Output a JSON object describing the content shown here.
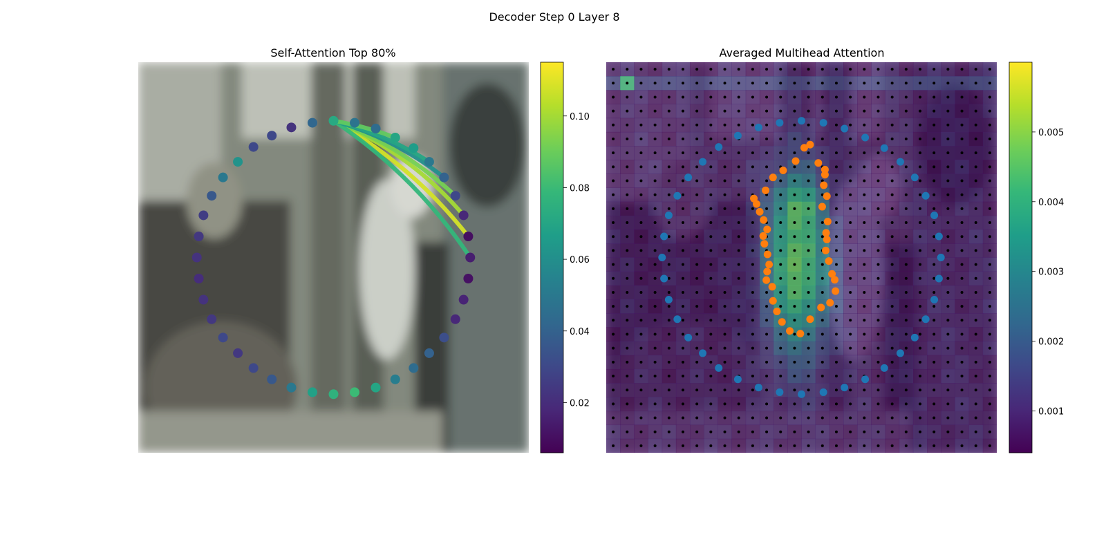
{
  "figure": {
    "title": "Decoder Step 0 Layer 8"
  },
  "colormap": [
    "#440154",
    "#482878",
    "#3e4989",
    "#31688e",
    "#26828e",
    "#1f9e89",
    "#35b779",
    "#6ece58",
    "#b5de2b",
    "#fde725"
  ],
  "chart_data": [
    {
      "type": "scatter",
      "title": "Self-Attention Top 80%",
      "background": "blurred street photo (bicycles, pole, pedestrian)",
      "xlim": [
        0,
        1
      ],
      "ylim": [
        0,
        1
      ],
      "points_note": "40 contour points on a ring; color = self-attention weight",
      "points": [
        {
          "x": 0.5,
          "y": 0.85,
          "v": 0.072
        },
        {
          "x": 0.554,
          "y": 0.845,
          "v": 0.048
        },
        {
          "x": 0.608,
          "y": 0.83,
          "v": 0.044
        },
        {
          "x": 0.658,
          "y": 0.807,
          "v": 0.07
        },
        {
          "x": 0.705,
          "y": 0.78,
          "v": 0.066
        },
        {
          "x": 0.745,
          "y": 0.745,
          "v": 0.05
        },
        {
          "x": 0.783,
          "y": 0.705,
          "v": 0.04
        },
        {
          "x": 0.812,
          "y": 0.658,
          "v": 0.03
        },
        {
          "x": 0.833,
          "y": 0.608,
          "v": 0.018
        },
        {
          "x": 0.845,
          "y": 0.554,
          "v": 0.01
        },
        {
          "x": 0.85,
          "y": 0.5,
          "v": 0.015
        },
        {
          "x": 0.845,
          "y": 0.446,
          "v": 0.011
        },
        {
          "x": 0.833,
          "y": 0.392,
          "v": 0.017
        },
        {
          "x": 0.812,
          "y": 0.342,
          "v": 0.018
        },
        {
          "x": 0.783,
          "y": 0.295,
          "v": 0.032
        },
        {
          "x": 0.745,
          "y": 0.255,
          "v": 0.04
        },
        {
          "x": 0.705,
          "y": 0.217,
          "v": 0.044
        },
        {
          "x": 0.658,
          "y": 0.188,
          "v": 0.052
        },
        {
          "x": 0.608,
          "y": 0.167,
          "v": 0.07
        },
        {
          "x": 0.554,
          "y": 0.155,
          "v": 0.08
        },
        {
          "x": 0.5,
          "y": 0.15,
          "v": 0.076
        },
        {
          "x": 0.446,
          "y": 0.155,
          "v": 0.068
        },
        {
          "x": 0.392,
          "y": 0.167,
          "v": 0.05
        },
        {
          "x": 0.342,
          "y": 0.188,
          "v": 0.036
        },
        {
          "x": 0.295,
          "y": 0.217,
          "v": 0.03
        },
        {
          "x": 0.255,
          "y": 0.255,
          "v": 0.024
        },
        {
          "x": 0.217,
          "y": 0.295,
          "v": 0.03
        },
        {
          "x": 0.188,
          "y": 0.342,
          "v": 0.024
        },
        {
          "x": 0.167,
          "y": 0.392,
          "v": 0.022
        },
        {
          "x": 0.155,
          "y": 0.446,
          "v": 0.02
        },
        {
          "x": 0.15,
          "y": 0.5,
          "v": 0.022
        },
        {
          "x": 0.155,
          "y": 0.554,
          "v": 0.024
        },
        {
          "x": 0.167,
          "y": 0.608,
          "v": 0.026
        },
        {
          "x": 0.188,
          "y": 0.658,
          "v": 0.036
        },
        {
          "x": 0.217,
          "y": 0.705,
          "v": 0.05
        },
        {
          "x": 0.255,
          "y": 0.745,
          "v": 0.062
        },
        {
          "x": 0.295,
          "y": 0.783,
          "v": 0.03
        },
        {
          "x": 0.342,
          "y": 0.812,
          "v": 0.03
        },
        {
          "x": 0.392,
          "y": 0.833,
          "v": 0.022
        },
        {
          "x": 0.446,
          "y": 0.845,
          "v": 0.042
        }
      ],
      "edges_note": "attention curves from query point 0 to the top attended points",
      "edges": [
        {
          "from": 0,
          "to": 9,
          "v": 0.108,
          "bend": 0.1
        },
        {
          "from": 0,
          "to": 8,
          "v": 0.1,
          "bend": 0.12
        },
        {
          "from": 0,
          "to": 7,
          "v": 0.092,
          "bend": 0.1
        },
        {
          "from": 0,
          "to": 10,
          "v": 0.078,
          "bend": 0.1
        },
        {
          "from": 0,
          "to": 6,
          "v": 0.06,
          "bend": 0.1
        },
        {
          "from": 0,
          "to": 5,
          "v": 0.07,
          "bend": 0.08
        },
        {
          "from": 0,
          "to": 3,
          "v": 0.088,
          "bend": 0.05
        }
      ],
      "colorbar": {
        "vmin": 0.006,
        "vmax": 0.115,
        "ticks": [
          0.02,
          0.04,
          0.06,
          0.08,
          0.1
        ],
        "tick_labels": [
          "0.02",
          "0.04",
          "0.06",
          "0.08",
          "0.10"
        ]
      }
    },
    {
      "type": "heatmap",
      "title": "Averaged Multihead Attention",
      "background": "blurred street photo under attention heatmap",
      "grid": [
        28,
        28
      ],
      "colorbar": {
        "vmin": 0.0004,
        "vmax": 0.006,
        "ticks": [
          0.001,
          0.002,
          0.003,
          0.004,
          0.005
        ],
        "tick_labels": [
          "0.001",
          "0.002",
          "0.003",
          "0.004",
          "0.005"
        ]
      },
      "series": [
        {
          "name": "",
          "color": "#1f77b4",
          "points_note": "outer ring of sampling points",
          "points": [
            {
              "x": 0.5,
              "y": 0.85
            },
            {
              "x": 0.556,
              "y": 0.845
            },
            {
              "x": 0.61,
              "y": 0.83
            },
            {
              "x": 0.663,
              "y": 0.807
            },
            {
              "x": 0.712,
              "y": 0.78
            },
            {
              "x": 0.753,
              "y": 0.745
            },
            {
              "x": 0.79,
              "y": 0.705
            },
            {
              "x": 0.818,
              "y": 0.658
            },
            {
              "x": 0.84,
              "y": 0.608
            },
            {
              "x": 0.852,
              "y": 0.554
            },
            {
              "x": 0.857,
              "y": 0.5
            },
            {
              "x": 0.852,
              "y": 0.446
            },
            {
              "x": 0.84,
              "y": 0.392
            },
            {
              "x": 0.818,
              "y": 0.342
            },
            {
              "x": 0.79,
              "y": 0.295
            },
            {
              "x": 0.753,
              "y": 0.255
            },
            {
              "x": 0.712,
              "y": 0.217
            },
            {
              "x": 0.663,
              "y": 0.188
            },
            {
              "x": 0.61,
              "y": 0.167
            },
            {
              "x": 0.556,
              "y": 0.155
            },
            {
              "x": 0.5,
              "y": 0.15
            },
            {
              "x": 0.444,
              "y": 0.155
            },
            {
              "x": 0.39,
              "y": 0.167
            },
            {
              "x": 0.337,
              "y": 0.188
            },
            {
              "x": 0.288,
              "y": 0.217
            },
            {
              "x": 0.247,
              "y": 0.255
            },
            {
              "x": 0.21,
              "y": 0.295
            },
            {
              "x": 0.182,
              "y": 0.342
            },
            {
              "x": 0.16,
              "y": 0.392
            },
            {
              "x": 0.148,
              "y": 0.446
            },
            {
              "x": 0.143,
              "y": 0.5
            },
            {
              "x": 0.148,
              "y": 0.554
            },
            {
              "x": 0.16,
              "y": 0.608
            },
            {
              "x": 0.182,
              "y": 0.658
            },
            {
              "x": 0.21,
              "y": 0.705
            },
            {
              "x": 0.247,
              "y": 0.745
            },
            {
              "x": 0.288,
              "y": 0.783
            },
            {
              "x": 0.337,
              "y": 0.812
            },
            {
              "x": 0.39,
              "y": 0.833
            },
            {
              "x": 0.444,
              "y": 0.845
            }
          ]
        },
        {
          "name": "",
          "color": "#ff7f0e",
          "points_note": "inner contour of predicted points",
          "points": [
            {
              "x": 0.507,
              "y": 0.781
            },
            {
              "x": 0.522,
              "y": 0.789
            },
            {
              "x": 0.543,
              "y": 0.742
            },
            {
              "x": 0.56,
              "y": 0.725
            },
            {
              "x": 0.56,
              "y": 0.712
            },
            {
              "x": 0.557,
              "y": 0.685
            },
            {
              "x": 0.565,
              "y": 0.657
            },
            {
              "x": 0.553,
              "y": 0.63
            },
            {
              "x": 0.567,
              "y": 0.592
            },
            {
              "x": 0.563,
              "y": 0.563
            },
            {
              "x": 0.565,
              "y": 0.546
            },
            {
              "x": 0.562,
              "y": 0.518
            },
            {
              "x": 0.57,
              "y": 0.491
            },
            {
              "x": 0.578,
              "y": 0.458
            },
            {
              "x": 0.585,
              "y": 0.443
            },
            {
              "x": 0.587,
              "y": 0.414
            },
            {
              "x": 0.573,
              "y": 0.384
            },
            {
              "x": 0.55,
              "y": 0.372
            },
            {
              "x": 0.522,
              "y": 0.342
            },
            {
              "x": 0.497,
              "y": 0.305
            },
            {
              "x": 0.47,
              "y": 0.312
            },
            {
              "x": 0.45,
              "y": 0.335
            },
            {
              "x": 0.437,
              "y": 0.362
            },
            {
              "x": 0.427,
              "y": 0.389
            },
            {
              "x": 0.425,
              "y": 0.425
            },
            {
              "x": 0.41,
              "y": 0.442
            },
            {
              "x": 0.412,
              "y": 0.464
            },
            {
              "x": 0.417,
              "y": 0.482
            },
            {
              "x": 0.413,
              "y": 0.508
            },
            {
              "x": 0.405,
              "y": 0.535
            },
            {
              "x": 0.402,
              "y": 0.555
            },
            {
              "x": 0.412,
              "y": 0.572
            },
            {
              "x": 0.403,
              "y": 0.596
            },
            {
              "x": 0.393,
              "y": 0.617
            },
            {
              "x": 0.385,
              "y": 0.637
            },
            {
              "x": 0.378,
              "y": 0.651
            },
            {
              "x": 0.408,
              "y": 0.672
            },
            {
              "x": 0.427,
              "y": 0.705
            },
            {
              "x": 0.453,
              "y": 0.723
            },
            {
              "x": 0.485,
              "y": 0.747
            }
          ]
        }
      ]
    }
  ]
}
